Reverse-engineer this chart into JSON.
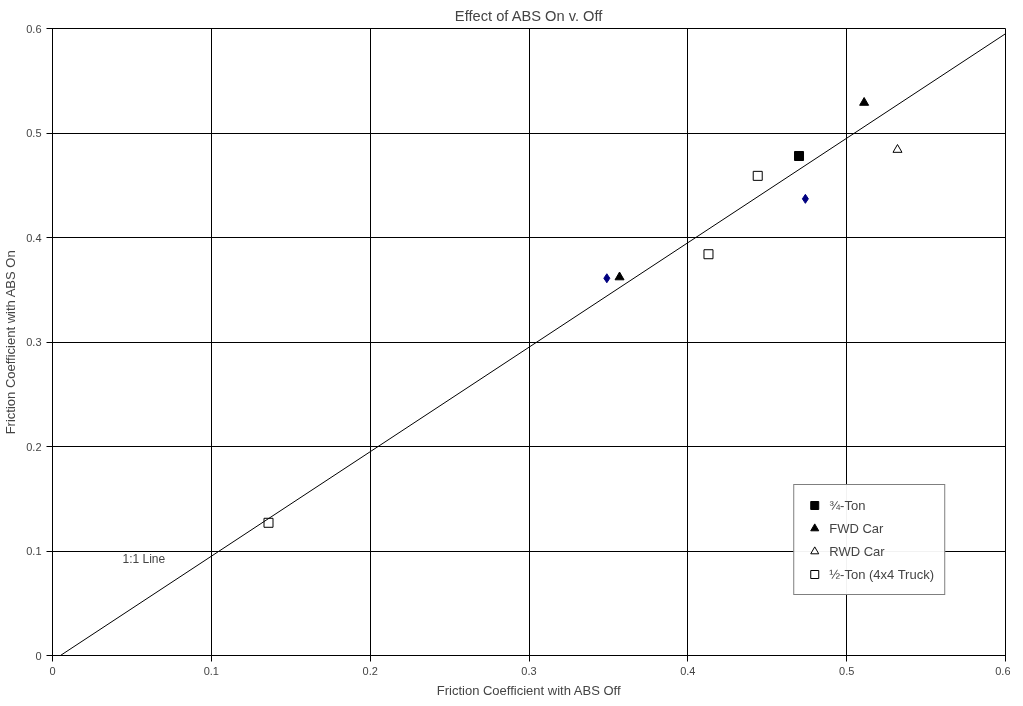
{
  "chart_data": {
    "type": "scatter",
    "title": "Effect of ABS On v. Off",
    "xlabel": "Friction Coefficient with ABS Off",
    "ylabel": "Friction Coefficient with ABS On",
    "xlim": [
      0,
      0.6
    ],
    "ylim": [
      0,
      0.6
    ],
    "xticks": [
      0,
      0.1,
      0.2,
      0.3,
      0.4,
      0.5,
      0.6
    ],
    "yticks": [
      0,
      0.1,
      0.2,
      0.3,
      0.4,
      0.5,
      0.6
    ],
    "grid": true,
    "legend": "bottom right",
    "series": [
      {
        "name": "¾-Ton",
        "color": "#000000",
        "marker": "square",
        "x": [
          0.47
        ],
        "values": [
          0.478
        ]
      },
      {
        "name": "FWD Car",
        "color": "#000000",
        "marker": "triangle",
        "x": [
          0.357,
          0.511
        ],
        "values": [
          0.362,
          0.529
        ]
      },
      {
        "name": "RWD Car",
        "color": "#000000",
        "marker": "triangle_open",
        "x": [
          0.532
        ],
        "values": [
          0.484
        ]
      },
      {
        "name": "½-Ton (4x4 Truck)",
        "color": "#000000",
        "marker": "square_open",
        "x": [
          0.136,
          0.413,
          0.444
        ],
        "values": [
          0.127,
          0.384,
          0.459
        ]
      },
      {
        "color": "#000080",
        "marker": "diamond",
        "x": [
          0.349,
          0.474
        ],
        "values": [
          0.361,
          0.437
        ]
      },
      {
        "type": "line",
        "color": "#000000",
        "x": [
          0.005,
          0.6
        ],
        "values": [
          0,
          0.595
        ]
      }
    ],
    "annotations": [
      "1:1 Line"
    ]
  }
}
